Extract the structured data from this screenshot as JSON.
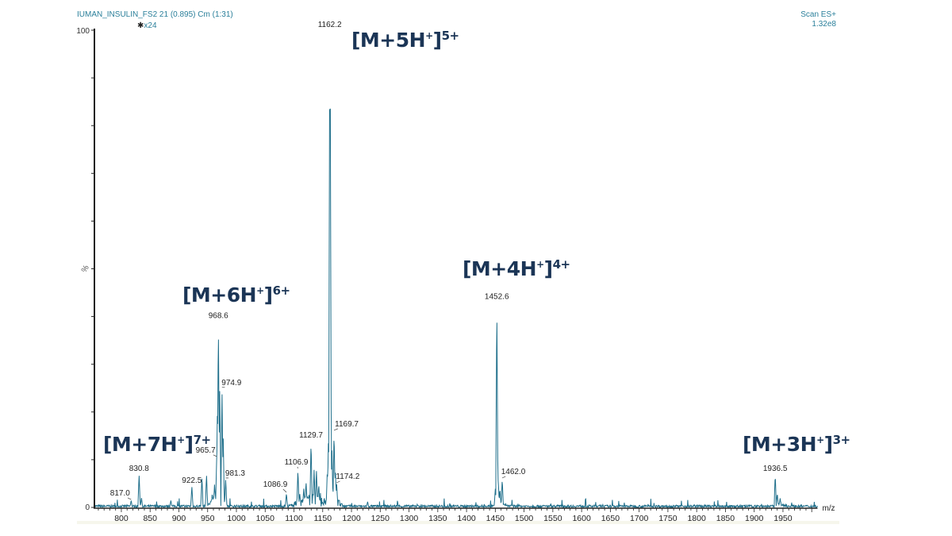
{
  "header": {
    "sample": "IUMAN_INSULIN_FS2 21 (0.895) Cm (1:31)",
    "magnification": "x24",
    "scan": "Scan ES+",
    "intensity": "1.32e8"
  },
  "chart_data": {
    "type": "line",
    "title": "",
    "xlabel": "m/z",
    "ylabel": "%",
    "xlim": [
      753,
      2010
    ],
    "ylim": [
      0,
      100
    ],
    "x_ticks": [
      800,
      850,
      900,
      950,
      1000,
      1050,
      1100,
      1150,
      1200,
      1250,
      1300,
      1350,
      1400,
      1450,
      1500,
      1550,
      1600,
      1650,
      1700,
      1750,
      1800,
      1850,
      1900,
      1950
    ],
    "y_tick_labels": [
      "0",
      "100"
    ],
    "grid": false,
    "colors": {
      "spectrum": "#1f6f8b",
      "annotation": "#1b3556",
      "axis": "#222222"
    },
    "labeled_peaks": [
      {
        "mz": 817.0,
        "intensity": 1.5,
        "label": "817.0"
      },
      {
        "mz": 830.8,
        "intensity": 7,
        "label": "830.8"
      },
      {
        "mz": 922.5,
        "intensity": 4.5,
        "label": "922.5"
      },
      {
        "mz": 965.7,
        "intensity": 10.5,
        "label": "965.7"
      },
      {
        "mz": 968.6,
        "intensity": 39,
        "label": "968.6"
      },
      {
        "mz": 974.9,
        "intensity": 25,
        "label": "974.9"
      },
      {
        "mz": 981.3,
        "intensity": 6,
        "label": "981.3"
      },
      {
        "mz": 1086.9,
        "intensity": 3,
        "label": "1086.9"
      },
      {
        "mz": 1106.9,
        "intensity": 8,
        "label": "1106.9"
      },
      {
        "mz": 1129.7,
        "intensity": 14,
        "label": "1129.7"
      },
      {
        "mz": 1162.2,
        "intensity": 100,
        "label": "1162.2"
      },
      {
        "mz": 1169.7,
        "intensity": 16,
        "label": "1169.7"
      },
      {
        "mz": 1174.2,
        "intensity": 5,
        "label": "1174.2"
      },
      {
        "mz": 1452.6,
        "intensity": 43,
        "label": "1452.6"
      },
      {
        "mz": 1462.0,
        "intensity": 6,
        "label": "1462.0"
      },
      {
        "mz": 1936.5,
        "intensity": 7,
        "label": "1936.5"
      }
    ],
    "minor_peaks": [
      {
        "mz": 835,
        "intensity": 2
      },
      {
        "mz": 886,
        "intensity": 1.5
      },
      {
        "mz": 940,
        "intensity": 6.5
      },
      {
        "mz": 948,
        "intensity": 7
      },
      {
        "mz": 958,
        "intensity": 3
      },
      {
        "mz": 962,
        "intensity": 5
      },
      {
        "mz": 967,
        "intensity": 22
      },
      {
        "mz": 971,
        "intensity": 26
      },
      {
        "mz": 977,
        "intensity": 15
      },
      {
        "mz": 1110,
        "intensity": 3
      },
      {
        "mz": 1117,
        "intensity": 4
      },
      {
        "mz": 1121,
        "intensity": 5.5
      },
      {
        "mz": 1135,
        "intensity": 8
      },
      {
        "mz": 1139,
        "intensity": 8
      },
      {
        "mz": 1143,
        "intensity": 5
      },
      {
        "mz": 1158,
        "intensity": 8
      },
      {
        "mz": 1160,
        "intensity": 15
      },
      {
        "mz": 1163,
        "intensity": 94
      },
      {
        "mz": 1166,
        "intensity": 12
      },
      {
        "mz": 1172,
        "intensity": 8
      },
      {
        "mz": 1228,
        "intensity": 1.2
      },
      {
        "mz": 1450,
        "intensity": 4
      },
      {
        "mz": 1455,
        "intensity": 6
      },
      {
        "mz": 1458,
        "intensity": 4
      },
      {
        "mz": 1940,
        "intensity": 3
      },
      {
        "mz": 1945,
        "intensity": 2
      }
    ],
    "annotations": [
      {
        "base": "[M+7H",
        "h": "+",
        "close": "]",
        "charge": "7+",
        "mz": 830.8
      },
      {
        "base": "[M+6H",
        "h": "+",
        "close": "]",
        "charge": "6+",
        "mz": 968.6
      },
      {
        "base": "[M+5H",
        "h": "+",
        "close": "]",
        "charge": "5+",
        "mz": 1162.2
      },
      {
        "base": "[M+4H",
        "h": "+",
        "close": "]",
        "charge": "4+",
        "mz": 1452.6
      },
      {
        "base": "[M+3H",
        "h": "+",
        "close": "]",
        "charge": "3+",
        "mz": 1936.5
      }
    ]
  }
}
